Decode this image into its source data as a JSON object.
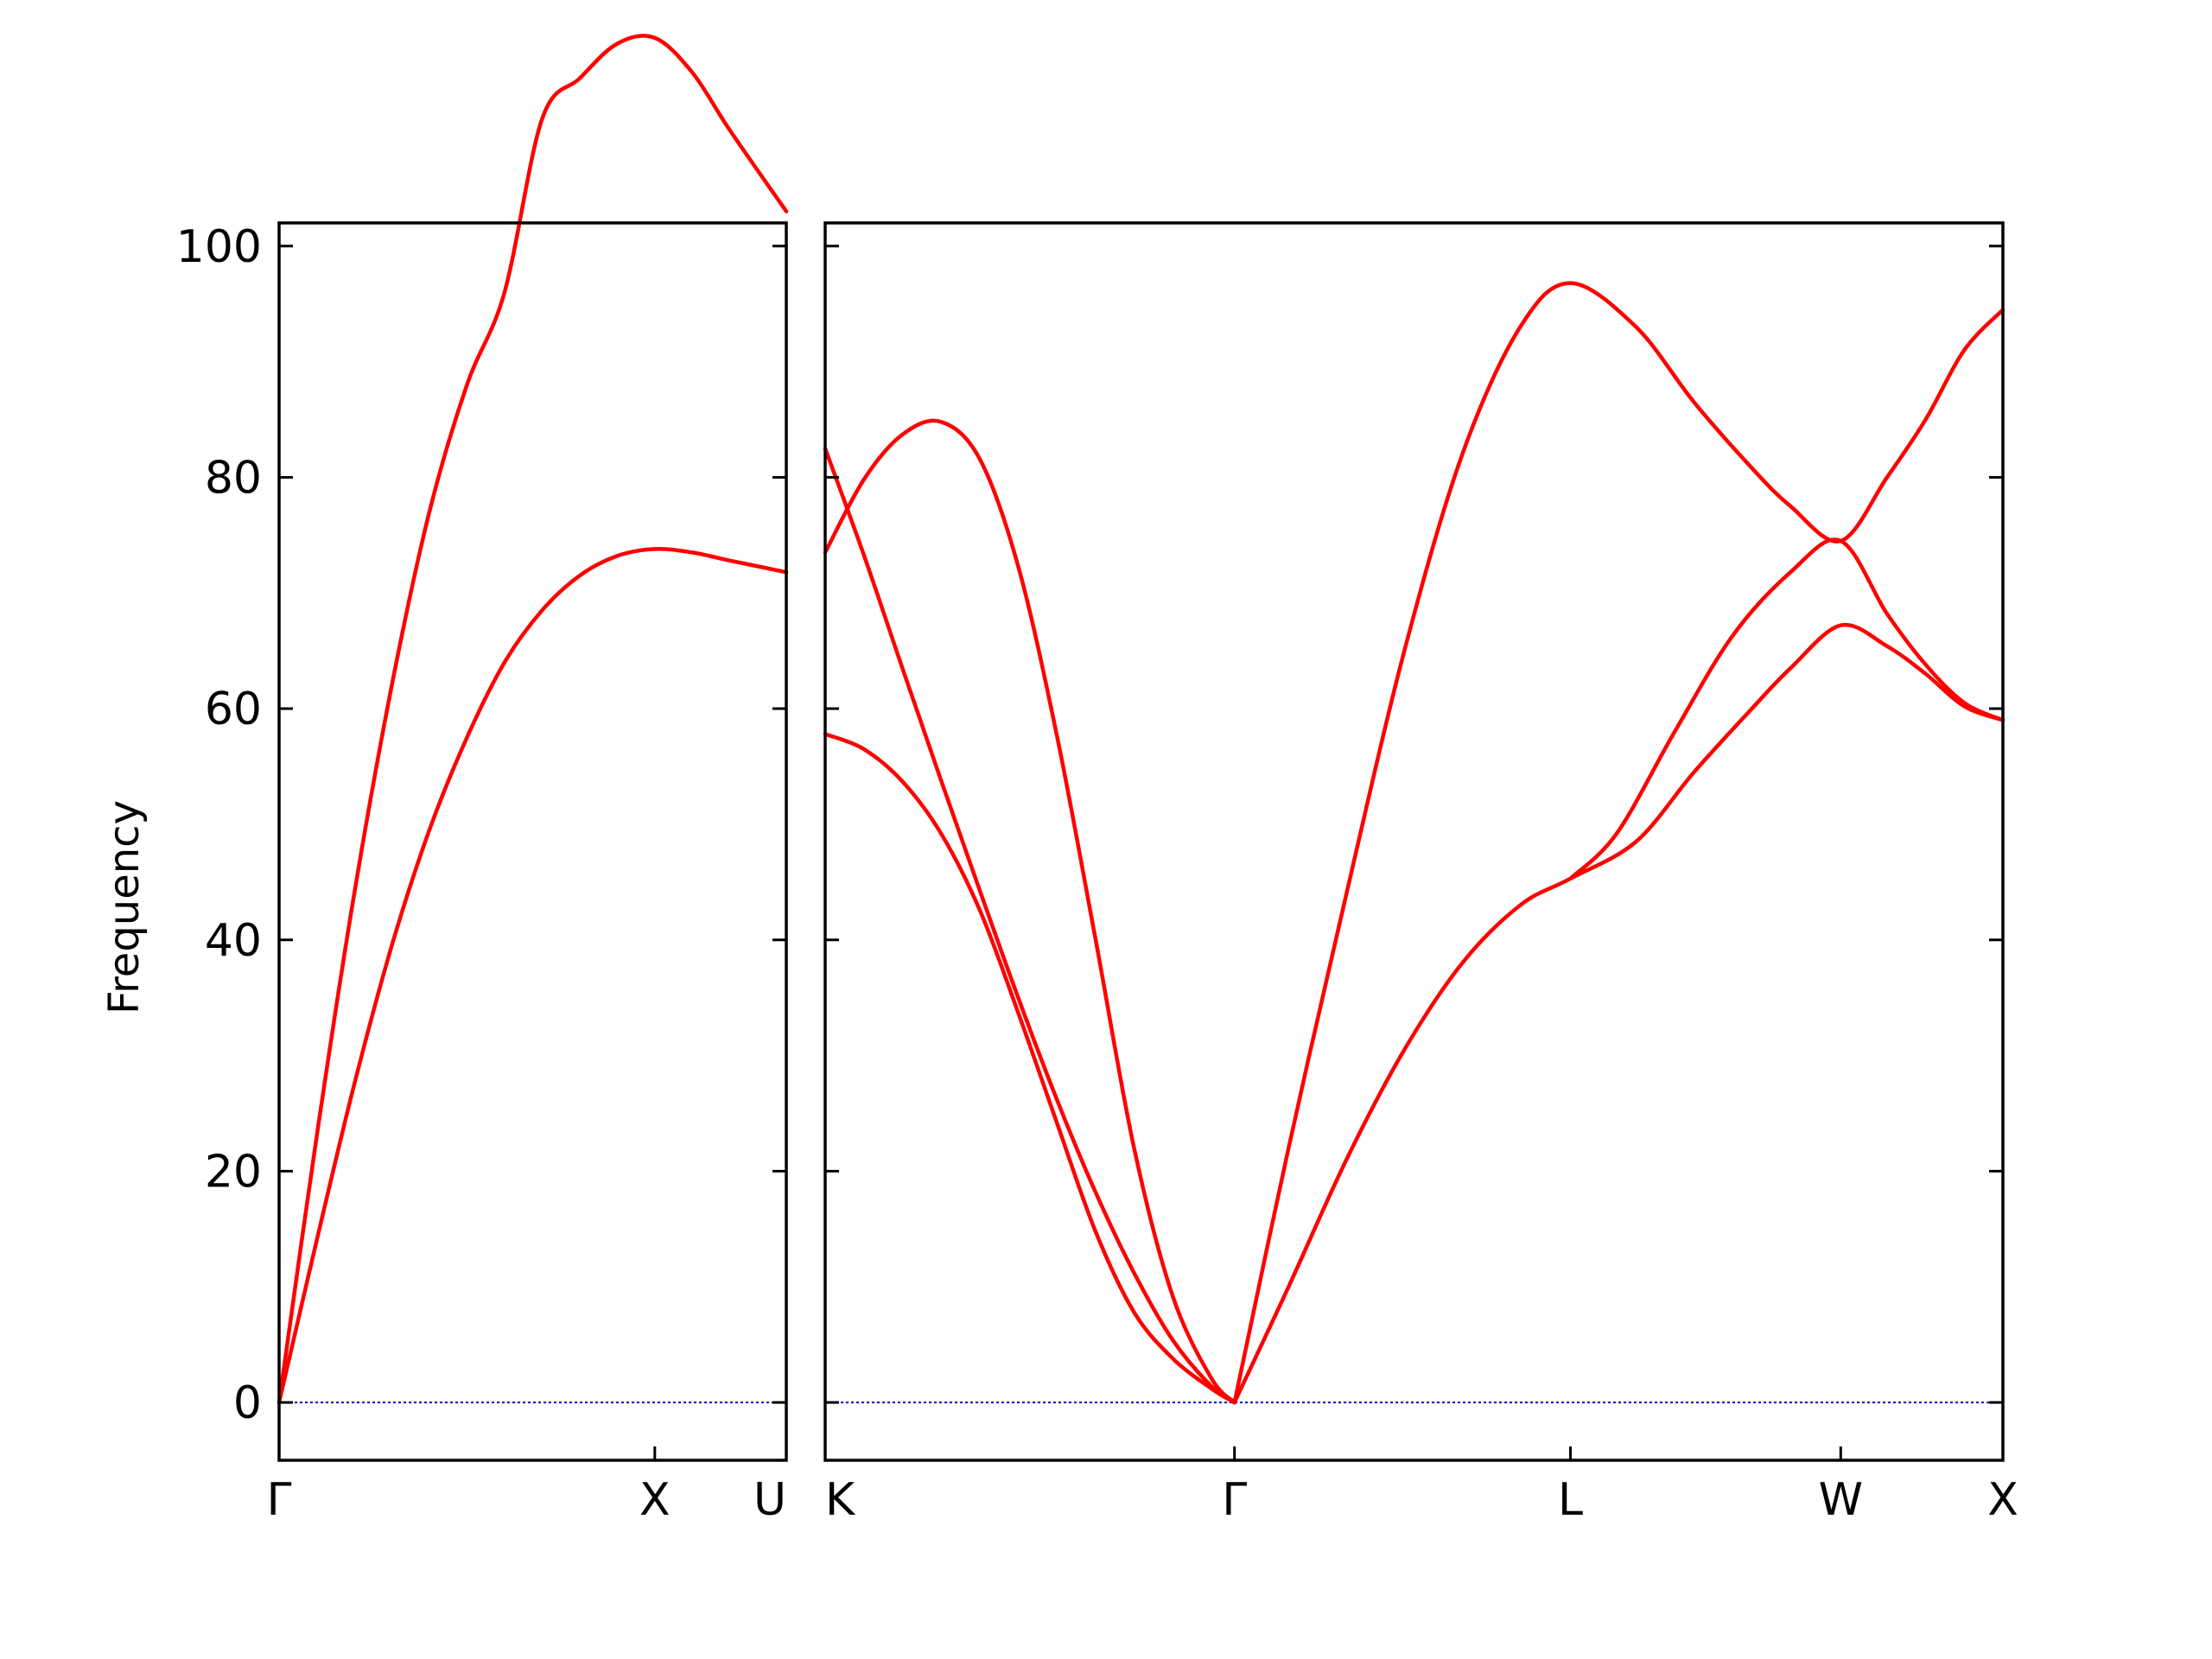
{
  "chart_data": {
    "type": "line",
    "ylabel": "Frequency",
    "ylim": [
      -5,
      102
    ],
    "yticks": [
      0,
      20,
      40,
      60,
      80,
      100
    ],
    "colors": {
      "bands": "#ff0000",
      "zero_line": "#0000cc",
      "axes": "#000000"
    },
    "panels": [
      {
        "xlim": [
          0,
          1.35
        ],
        "xticks": [
          {
            "x": 0,
            "label": "Γ"
          },
          {
            "x": 1.0,
            "label": "X"
          },
          {
            "x": 1.35,
            "label": "U"
          }
        ],
        "bands": [
          [
            [
              0,
              0
            ],
            [
              0.1,
              14
            ],
            [
              0.2,
              27.5
            ],
            [
              0.3,
              39.5
            ],
            [
              0.4,
              49.5
            ],
            [
              0.5,
              57.5
            ],
            [
              0.6,
              64
            ],
            [
              0.7,
              68.5
            ],
            [
              0.8,
              71.5
            ],
            [
              0.9,
              73.2
            ],
            [
              1.0,
              73.8
            ],
            [
              1.1,
              73.5
            ],
            [
              1.2,
              72.8
            ],
            [
              1.35,
              71.8
            ]
          ],
          [
            [
              0,
              0
            ],
            [
              0.1,
              23
            ],
            [
              0.2,
              44
            ],
            [
              0.3,
              62
            ],
            [
              0.4,
              77
            ],
            [
              0.5,
              88
            ],
            [
              0.6,
              96
            ],
            [
              0.7,
              111
            ],
            [
              0.8,
              114.5
            ],
            [
              0.9,
              117.5
            ],
            [
              1.0,
              118
            ],
            [
              1.1,
              115
            ],
            [
              1.2,
              110
            ],
            [
              1.35,
              103
            ]
          ]
        ]
      },
      {
        "xlim": [
          0,
          3.05
        ],
        "xticks": [
          {
            "x": 0,
            "label": "K"
          },
          {
            "x": 1.06,
            "label": "Γ"
          },
          {
            "x": 1.93,
            "label": "L"
          },
          {
            "x": 2.63,
            "label": "W"
          },
          {
            "x": 3.05,
            "label": "X"
          }
        ],
        "bands": [
          [
            [
              0,
              57.8
            ],
            [
              0.1,
              56.5
            ],
            [
              0.2,
              53.7
            ],
            [
              0.3,
              49.2
            ],
            [
              0.4,
              42.6
            ],
            [
              0.5,
              33.7
            ],
            [
              0.6,
              24.2
            ],
            [
              0.7,
              14.8
            ],
            [
              0.8,
              7.8
            ],
            [
              0.9,
              3.8
            ],
            [
              1.0,
              1.2
            ],
            [
              1.06,
              0
            ]
          ],
          [
            [
              0,
              82.5
            ],
            [
              0.1,
              73.3
            ],
            [
              0.2,
              63.5
            ],
            [
              0.3,
              53.8
            ],
            [
              0.4,
              44.3
            ],
            [
              0.5,
              35.0
            ],
            [
              0.6,
              26.2
            ],
            [
              0.7,
              18.2
            ],
            [
              0.8,
              11.2
            ],
            [
              0.9,
              5.4
            ],
            [
              1.0,
              1.4
            ],
            [
              1.06,
              0
            ]
          ],
          [
            [
              0,
              73.5
            ],
            [
              0.1,
              79.8
            ],
            [
              0.2,
              83.7
            ],
            [
              0.3,
              84.8
            ],
            [
              0.4,
              81.6
            ],
            [
              0.5,
              72.3
            ],
            [
              0.6,
              57.7
            ],
            [
              0.7,
              40.1
            ],
            [
              0.8,
              22.0
            ],
            [
              0.9,
              9.2
            ],
            [
              1.0,
              2.1
            ],
            [
              1.06,
              0
            ]
          ],
          [
            [
              1.06,
              0
            ],
            [
              1.2,
              10.0
            ],
            [
              1.35,
              21.0
            ],
            [
              1.5,
              30.5
            ],
            [
              1.65,
              38.0
            ],
            [
              1.8,
              43.0
            ],
            [
              1.93,
              45.3
            ],
            [
              2.1,
              48.5
            ],
            [
              2.25,
              54.5
            ],
            [
              2.4,
              60.0
            ],
            [
              2.5,
              63.5
            ],
            [
              2.63,
              67.2
            ],
            [
              2.75,
              65.4
            ],
            [
              2.85,
              63.0
            ],
            [
              2.95,
              60.2
            ],
            [
              3.05,
              59.0
            ]
          ],
          [
            [
              1.06,
              0
            ],
            [
              1.2,
              22.0
            ],
            [
              1.35,
              44.0
            ],
            [
              1.5,
              65.0
            ],
            [
              1.65,
              82.0
            ],
            [
              1.8,
              93.0
            ],
            [
              1.93,
              96.8
            ],
            [
              2.1,
              93.0
            ],
            [
              2.25,
              86.5
            ],
            [
              2.4,
              80.8
            ],
            [
              2.5,
              77.5
            ],
            [
              2.63,
              74.5
            ],
            [
              2.75,
              80.0
            ],
            [
              2.85,
              85.0
            ],
            [
              2.95,
              91.0
            ],
            [
              3.05,
              94.5
            ]
          ],
          [
            [
              1.93,
              45.3
            ],
            [
              2.05,
              49.2
            ],
            [
              2.2,
              58.0
            ],
            [
              2.35,
              66.3
            ],
            [
              2.5,
              71.8
            ],
            [
              2.63,
              74.5
            ],
            [
              2.75,
              68.2
            ],
            [
              2.85,
              63.8
            ],
            [
              2.95,
              60.5
            ],
            [
              3.05,
              59.0
            ]
          ]
        ]
      }
    ]
  }
}
